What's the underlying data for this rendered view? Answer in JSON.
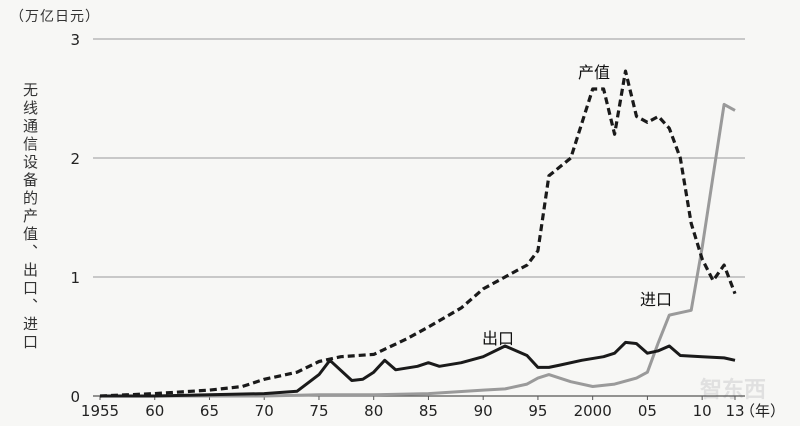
{
  "chart_data": {
    "type": "line",
    "unit_label": "（万亿日元）",
    "ylabel": "无线通信设备的产值、出口、进口",
    "xlabel": "（年）",
    "x_tick_labels": [
      "1955",
      "60",
      "65",
      "70",
      "75",
      "80",
      "85",
      "90",
      "95",
      "2000",
      "05",
      "10",
      "13"
    ],
    "x_ticks": [
      1955,
      1960,
      1965,
      1970,
      1975,
      1980,
      1985,
      1990,
      1995,
      2000,
      2005,
      2010,
      2013
    ],
    "xlim": [
      1955,
      2013
    ],
    "y_tick_labels": [
      "0",
      "1",
      "2",
      "3"
    ],
    "y_ticks": [
      0,
      1,
      2,
      3
    ],
    "ylim": [
      0,
      3
    ],
    "grid": "horizontal",
    "series": [
      {
        "name": "产值",
        "style": "dashed",
        "color": "#1a1a1a",
        "x": [
          1955,
          1960,
          1965,
          1968,
          1970,
          1973,
          1975,
          1977,
          1980,
          1983,
          1985,
          1988,
          1990,
          1993,
          1994,
          1995,
          1996,
          1998,
          2000,
          2001,
          2002,
          2003,
          2004,
          2005,
          2006,
          2007,
          2008,
          2009,
          2010,
          2011,
          2012,
          2013
        ],
        "values": [
          0.0,
          0.02,
          0.05,
          0.08,
          0.14,
          0.2,
          0.29,
          0.33,
          0.35,
          0.48,
          0.58,
          0.74,
          0.9,
          1.05,
          1.1,
          1.22,
          1.85,
          2.0,
          2.58,
          2.58,
          2.2,
          2.73,
          2.35,
          2.3,
          2.35,
          2.25,
          2.0,
          1.45,
          1.15,
          0.97,
          1.1,
          0.86
        ]
      },
      {
        "name": "出口",
        "style": "solid",
        "color": "#1a1a1a",
        "x": [
          1955,
          1960,
          1965,
          1970,
          1973,
          1975,
          1976,
          1978,
          1979,
          1980,
          1981,
          1982,
          1984,
          1985,
          1986,
          1988,
          1990,
          1992,
          1994,
          1995,
          1996,
          1997,
          1999,
          2001,
          2002,
          2003,
          2004,
          2005,
          2006,
          2007,
          2008,
          2010,
          2012,
          2013
        ],
        "values": [
          0.0,
          0.0,
          0.01,
          0.02,
          0.04,
          0.18,
          0.3,
          0.13,
          0.14,
          0.2,
          0.3,
          0.22,
          0.25,
          0.28,
          0.25,
          0.28,
          0.33,
          0.42,
          0.34,
          0.24,
          0.24,
          0.26,
          0.3,
          0.33,
          0.36,
          0.45,
          0.44,
          0.36,
          0.38,
          0.42,
          0.34,
          0.33,
          0.32,
          0.3
        ]
      },
      {
        "name": "进口",
        "style": "solid",
        "color": "#9a9a9a",
        "x": [
          1955,
          1960,
          1965,
          1970,
          1975,
          1980,
          1985,
          1990,
          1992,
          1994,
          1995,
          1996,
          1998,
          2000,
          2002,
          2004,
          2005,
          2006,
          2007,
          2008,
          2009,
          2010,
          2011,
          2012,
          2013
        ],
        "values": [
          0.0,
          0.0,
          0.0,
          0.0,
          0.01,
          0.01,
          0.02,
          0.05,
          0.06,
          0.1,
          0.15,
          0.18,
          0.12,
          0.08,
          0.1,
          0.15,
          0.2,
          0.45,
          0.68,
          0.7,
          0.72,
          1.25,
          1.85,
          2.45,
          2.4
        ]
      }
    ],
    "annotations": [
      {
        "text": "产值",
        "series": "产值"
      },
      {
        "text": "出口",
        "series": "出口"
      },
      {
        "text": "进口",
        "series": "进口"
      }
    ]
  },
  "watermark": "智东西"
}
